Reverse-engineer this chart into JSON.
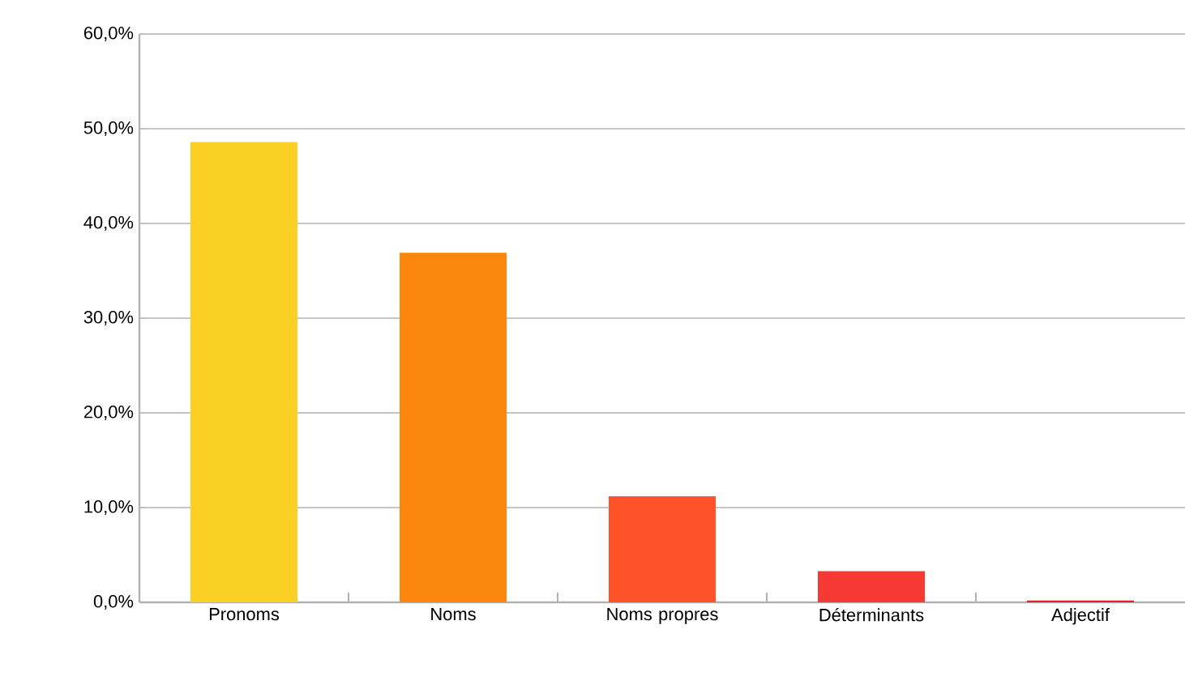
{
  "chart_data": {
    "type": "bar",
    "categories": [
      "Pronoms",
      "Noms",
      "Noms propres",
      "Déterminants",
      "Adjectif"
    ],
    "values": [
      48.6,
      36.9,
      11.2,
      3.3,
      0.2
    ],
    "colors": [
      "#fbd024",
      "#fb870f",
      "#fe5228",
      "#f63a33",
      "#e8201c"
    ],
    "ylim": [
      0,
      60
    ],
    "yticks": [
      {
        "value": 0,
        "label": "0,0%"
      },
      {
        "value": 10,
        "label": "10,0%"
      },
      {
        "value": 20,
        "label": "20,0%"
      },
      {
        "value": 30,
        "label": "30,0%"
      },
      {
        "value": 40,
        "label": "40,0%"
      },
      {
        "value": 50,
        "label": "50,0%"
      },
      {
        "value": 60,
        "label": "60,0%"
      }
    ],
    "grid": "y"
  }
}
